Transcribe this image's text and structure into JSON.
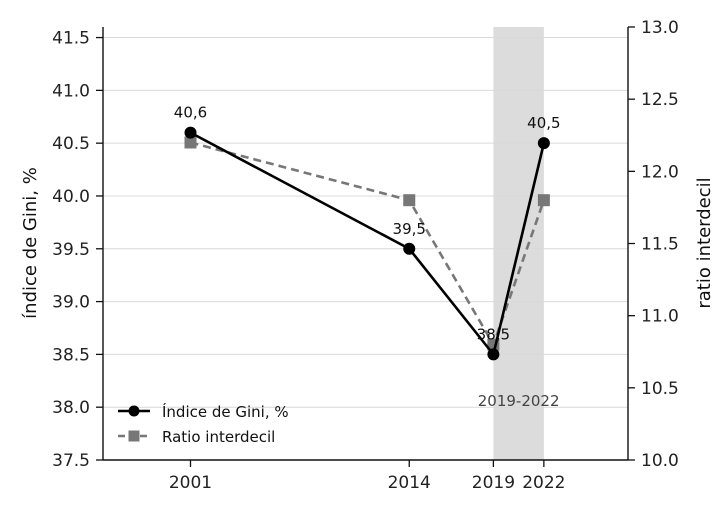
{
  "chart_data": {
    "type": "line",
    "x": [
      2001,
      2014,
      2019,
      2022
    ],
    "xticks": [
      "2001",
      "2014",
      "2019",
      "2022"
    ],
    "xlim": [
      1995.8,
      2027.0
    ],
    "series": [
      {
        "name": "Índice de Gini, %",
        "axis": "left",
        "values": [
          40.6,
          39.5,
          38.5,
          40.5
        ],
        "data_labels": [
          "40,6",
          "39,5",
          "38,5",
          "40,5"
        ],
        "color": "#000000",
        "line_style": "solid",
        "marker": "circle"
      },
      {
        "name": "Ratio interdecil",
        "axis": "right",
        "values": [
          12.2,
          11.8,
          10.8,
          11.8
        ],
        "color": "#777777",
        "line_style": "dashed",
        "marker": "square"
      }
    ],
    "ylabel_left": "índice de Gini, %",
    "ylabel_right": "ratio interdecil",
    "ylim_left": [
      37.5,
      41.6
    ],
    "yticks_left": [
      "37.5",
      "38.0",
      "38.5",
      "39.0",
      "39.5",
      "40.0",
      "40.5",
      "41.0",
      "41.5"
    ],
    "ylim_right": [
      10.0,
      13.0
    ],
    "yticks_right": [
      "10.0",
      "10.5",
      "11.0",
      "11.5",
      "12.0",
      "12.5",
      "13.0"
    ],
    "shaded_region": {
      "x_start": 2019,
      "x_end": 2022,
      "label": "2019-2022",
      "color": "#dcdcdc"
    },
    "grid": "horizontal",
    "legend_position": "lower-left"
  }
}
